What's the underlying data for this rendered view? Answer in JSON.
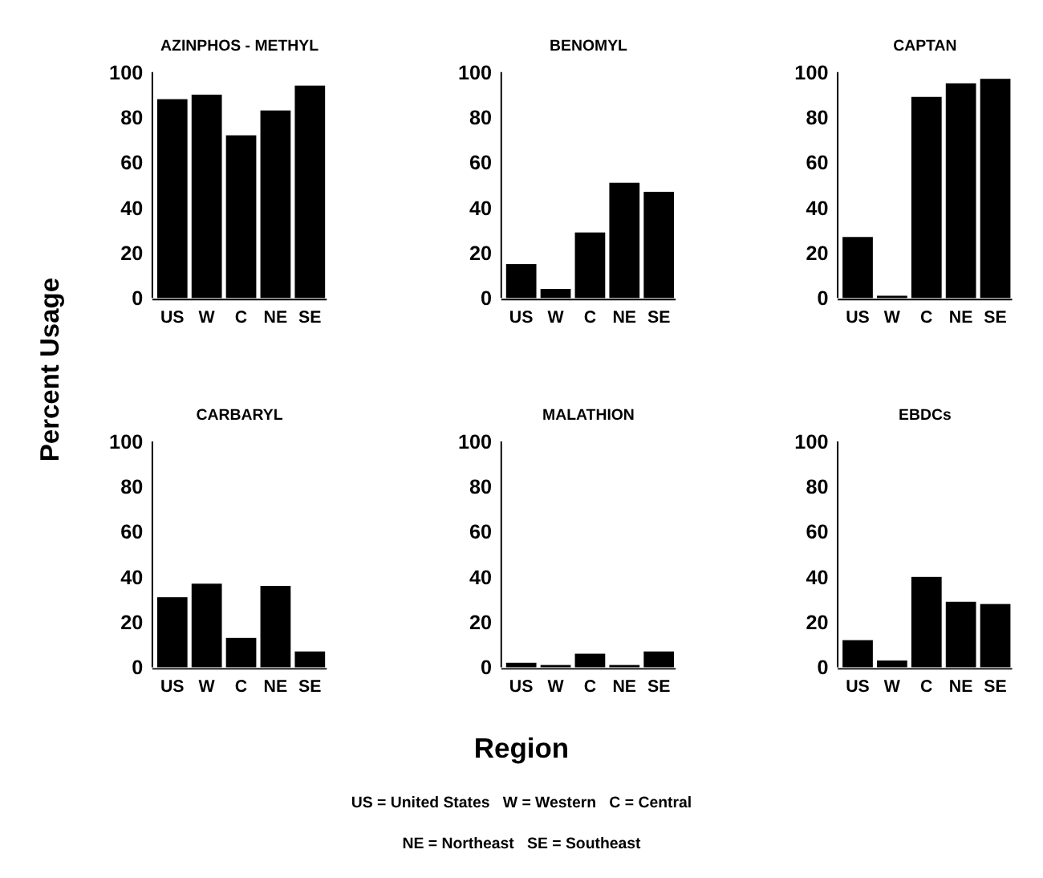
{
  "chart_data": [
    {
      "type": "bar",
      "title": "AZINPHOS - METHYL",
      "ylabel": "Percent  Usage",
      "categories": [
        "US",
        "W",
        "C",
        "NE",
        "SE"
      ],
      "values": [
        88,
        90,
        72,
        83,
        94
      ],
      "color": "#000000",
      "ylim": [
        0,
        100
      ],
      "yticks": [
        0,
        20,
        40,
        60,
        80,
        100
      ],
      "grid": false
    },
    {
      "type": "bar",
      "title": "BENOMYL",
      "categories": [
        "US",
        "W",
        "C",
        "NE",
        "SE"
      ],
      "values": [
        15,
        4,
        29,
        51,
        47
      ],
      "color": "#000000",
      "ylim": [
        0,
        100
      ],
      "yticks": [
        0,
        20,
        40,
        60,
        80,
        100
      ],
      "grid": false
    },
    {
      "type": "bar",
      "title": "CAPTAN",
      "categories": [
        "US",
        "W",
        "C",
        "NE",
        "SE"
      ],
      "values": [
        27,
        1,
        89,
        95,
        97
      ],
      "color": "#000000",
      "ylim": [
        0,
        100
      ],
      "yticks": [
        0,
        20,
        40,
        60,
        80,
        100
      ],
      "grid": false
    },
    {
      "type": "bar",
      "title": "CARBARYL",
      "categories": [
        "US",
        "W",
        "C",
        "NE",
        "SE"
      ],
      "values": [
        31,
        37,
        13,
        36,
        7
      ],
      "color": "#000000",
      "ylim": [
        0,
        100
      ],
      "yticks": [
        0,
        20,
        40,
        60,
        80,
        100
      ],
      "grid": false
    },
    {
      "type": "bar",
      "title": "MALATHION",
      "xlabel": "Region",
      "annotations": [
        "US = United States   W = Western   C = Central",
        "NE = Northeast   SE = Southeast"
      ],
      "categories": [
        "US",
        "W",
        "C",
        "NE",
        "SE"
      ],
      "values": [
        2,
        1,
        6,
        1,
        7
      ],
      "color": "#000000",
      "ylim": [
        0,
        100
      ],
      "yticks": [
        0,
        20,
        40,
        60,
        80,
        100
      ],
      "grid": false
    },
    {
      "type": "bar",
      "title": "EBDCs",
      "categories": [
        "US",
        "W",
        "C",
        "NE",
        "SE"
      ],
      "values": [
        12,
        3,
        40,
        29,
        28
      ],
      "color": "#000000",
      "ylim": [
        0,
        100
      ],
      "yticks": [
        0,
        20,
        40,
        60,
        80,
        100
      ],
      "grid": false
    }
  ]
}
